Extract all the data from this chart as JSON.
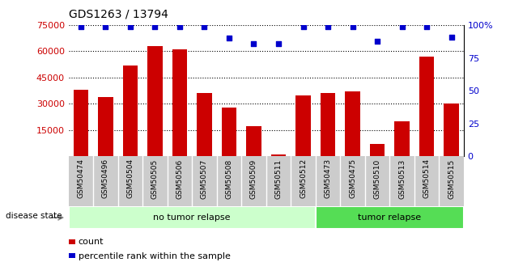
{
  "title": "GDS1263 / 13794",
  "samples": [
    "GSM50474",
    "GSM50496",
    "GSM50504",
    "GSM50505",
    "GSM50506",
    "GSM50507",
    "GSM50508",
    "GSM50509",
    "GSM50511",
    "GSM50512",
    "GSM50473",
    "GSM50475",
    "GSM50510",
    "GSM50513",
    "GSM50514",
    "GSM50515"
  ],
  "counts": [
    38000,
    34000,
    52000,
    63000,
    61000,
    36000,
    28000,
    17000,
    1000,
    35000,
    36000,
    37000,
    7000,
    20000,
    57000,
    30000
  ],
  "percentiles": [
    99,
    99,
    99,
    99,
    99,
    99,
    90,
    86,
    86,
    99,
    99,
    99,
    88,
    99,
    99,
    91
  ],
  "group1_label": "no tumor relapse",
  "group2_label": "tumor relapse",
  "group1_count": 10,
  "group2_count": 6,
  "bar_color": "#cc0000",
  "dot_color": "#0000cc",
  "ylim_left": [
    0,
    75000
  ],
  "ylim_right": [
    0,
    100
  ],
  "yticks_left": [
    15000,
    30000,
    45000,
    60000,
    75000
  ],
  "yticks_right": [
    0,
    25,
    50,
    75,
    100
  ],
  "group1_bg": "#ccffcc",
  "group2_bg": "#55dd55",
  "tick_bg": "#cccccc",
  "legend_bar_color": "#cc0000",
  "legend_dot_color": "#0000cc"
}
